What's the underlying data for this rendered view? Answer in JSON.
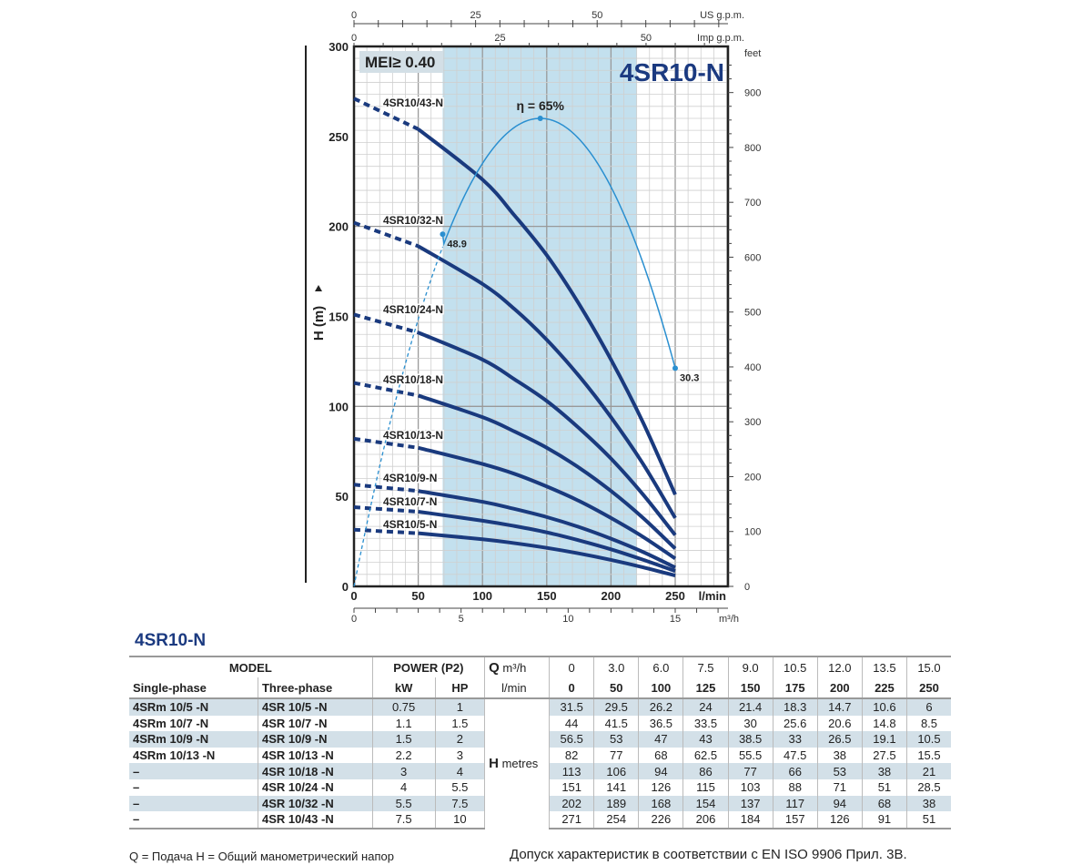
{
  "chart_data": {
    "type": "line",
    "title": "4SR10-N",
    "badge": "MEI≥ 0.40",
    "xlabel": "l/min",
    "ylabel": "H (m)",
    "xlim": [
      0,
      290
    ],
    "ylim": [
      0,
      300
    ],
    "x_ticks": [
      0,
      50,
      100,
      150,
      200,
      250
    ],
    "y_ticks": [
      0,
      50,
      100,
      150,
      200,
      250,
      300
    ],
    "secondary_axes": {
      "us_gpm": {
        "label": "US g.p.m.",
        "ticks": [
          0,
          25,
          50
        ]
      },
      "imp_gpm": {
        "label": "Imp g.p.m.",
        "ticks": [
          0,
          25,
          50
        ]
      },
      "feet": {
        "label": "feet",
        "ticks": [
          0,
          100,
          200,
          300,
          400,
          500,
          600,
          700,
          800,
          900
        ]
      },
      "m3h": {
        "label": "m³/h",
        "ticks": [
          0,
          5,
          10,
          15
        ]
      }
    },
    "recommended_range_lpm": [
      69,
      220
    ],
    "x": [
      0,
      50,
      100,
      125,
      150,
      175,
      200,
      225,
      250
    ],
    "dashed_until_lpm": 50,
    "series": [
      {
        "name": "4SR10/43-N",
        "values": [
          271,
          254,
          226,
          206,
          184,
          157,
          126,
          91,
          51
        ]
      },
      {
        "name": "4SR10/32-N",
        "values": [
          202,
          189,
          168,
          154,
          137,
          117,
          94,
          68,
          38
        ]
      },
      {
        "name": "4SR10/24-N",
        "values": [
          151,
          141,
          126,
          115,
          103,
          88,
          71,
          51,
          28.5
        ]
      },
      {
        "name": "4SR10/18-N",
        "values": [
          113,
          106,
          94,
          86,
          77,
          66,
          53,
          38,
          21
        ]
      },
      {
        "name": "4SR10/13-N",
        "values": [
          82,
          77,
          68,
          62.5,
          55.5,
          47.5,
          38,
          27.5,
          15.5
        ]
      },
      {
        "name": "4SR10/9-N",
        "values": [
          56.5,
          53,
          47,
          43,
          38.5,
          33,
          26.5,
          19.1,
          10.5
        ]
      },
      {
        "name": "4SR10/7-N",
        "values": [
          44,
          41.5,
          36.5,
          33.5,
          30,
          25.6,
          20.6,
          14.8,
          8.5
        ]
      },
      {
        "name": "4SR10/5-N",
        "values": [
          31.5,
          29.5,
          26.2,
          24,
          21.4,
          18.3,
          14.7,
          10.6,
          6
        ]
      }
    ],
    "efficiency": {
      "label": "η = 65%",
      "points": [
        {
          "q": 0,
          "eta": 0
        },
        {
          "q": 69,
          "eta": 48.9,
          "label": "48.9"
        },
        {
          "q": 145,
          "eta": 65
        },
        {
          "q": 250,
          "eta": 30.3,
          "label": "30.3"
        }
      ]
    }
  },
  "table": {
    "title": "4SR10-N",
    "headers": {
      "model": "MODEL",
      "single_phase": "Single-phase",
      "three_phase": "Three-phase",
      "power": "POWER (P2)",
      "kw": "kW",
      "hp": "HP",
      "q": "Q",
      "m3h": "m³/h",
      "lmin": "l/min",
      "h": "H",
      "metres": "metres"
    },
    "q_m3h": [
      "0",
      "3.0",
      "6.0",
      "7.5",
      "9.0",
      "10.5",
      "12.0",
      "13.5",
      "15.0"
    ],
    "q_lmin": [
      "0",
      "50",
      "100",
      "125",
      "150",
      "175",
      "200",
      "225",
      "250"
    ],
    "rows": [
      {
        "single": "4SRm 10/5   -N",
        "three": "4SR 10/5   -N",
        "kw": "0.75",
        "hp": "1",
        "h": [
          "31.5",
          "29.5",
          "26.2",
          "24",
          "21.4",
          "18.3",
          "14.7",
          "10.6",
          "6"
        ]
      },
      {
        "single": "4SRm 10/7   -N",
        "three": "4SR 10/7   -N",
        "kw": "1.1",
        "hp": "1.5",
        "h": [
          "44",
          "41.5",
          "36.5",
          "33.5",
          "30",
          "25.6",
          "20.6",
          "14.8",
          "8.5"
        ]
      },
      {
        "single": "4SRm 10/9   -N",
        "three": "4SR 10/9   -N",
        "kw": "1.5",
        "hp": "2",
        "h": [
          "56.5",
          "53",
          "47",
          "43",
          "38.5",
          "33",
          "26.5",
          "19.1",
          "10.5"
        ]
      },
      {
        "single": "4SRm 10/13 -N",
        "three": "4SR 10/13 -N",
        "kw": "2.2",
        "hp": "3",
        "h": [
          "82",
          "77",
          "68",
          "62.5",
          "55.5",
          "47.5",
          "38",
          "27.5",
          "15.5"
        ]
      },
      {
        "single": "–",
        "three": "4SR 10/18 -N",
        "kw": "3",
        "hp": "4",
        "h": [
          "113",
          "106",
          "94",
          "86",
          "77",
          "66",
          "53",
          "38",
          "21"
        ]
      },
      {
        "single": "–",
        "three": "4SR 10/24 -N",
        "kw": "4",
        "hp": "5.5",
        "h": [
          "151",
          "141",
          "126",
          "115",
          "103",
          "88",
          "71",
          "51",
          "28.5"
        ]
      },
      {
        "single": "–",
        "three": "4SR 10/32 -N",
        "kw": "5.5",
        "hp": "7.5",
        "h": [
          "202",
          "189",
          "168",
          "154",
          "137",
          "117",
          "94",
          "68",
          "38"
        ]
      },
      {
        "single": "–",
        "three": "4SR 10/43 -N",
        "kw": "7.5",
        "hp": "10",
        "h": [
          "271",
          "254",
          "226",
          "206",
          "184",
          "157",
          "126",
          "91",
          "51"
        ]
      }
    ]
  },
  "footer": {
    "legend": "Q = Подача   H = Общий манометрический напор",
    "tolerance": "Допуск характеристик в соответствии с EN ISO 9906 Прил. 3В."
  },
  "colors": {
    "curve": "#1a3a7e",
    "efficiency": "#2a8fd0",
    "range": "#c3e0ee",
    "title": "#1b3a80",
    "badge": "#d3dfe6"
  }
}
